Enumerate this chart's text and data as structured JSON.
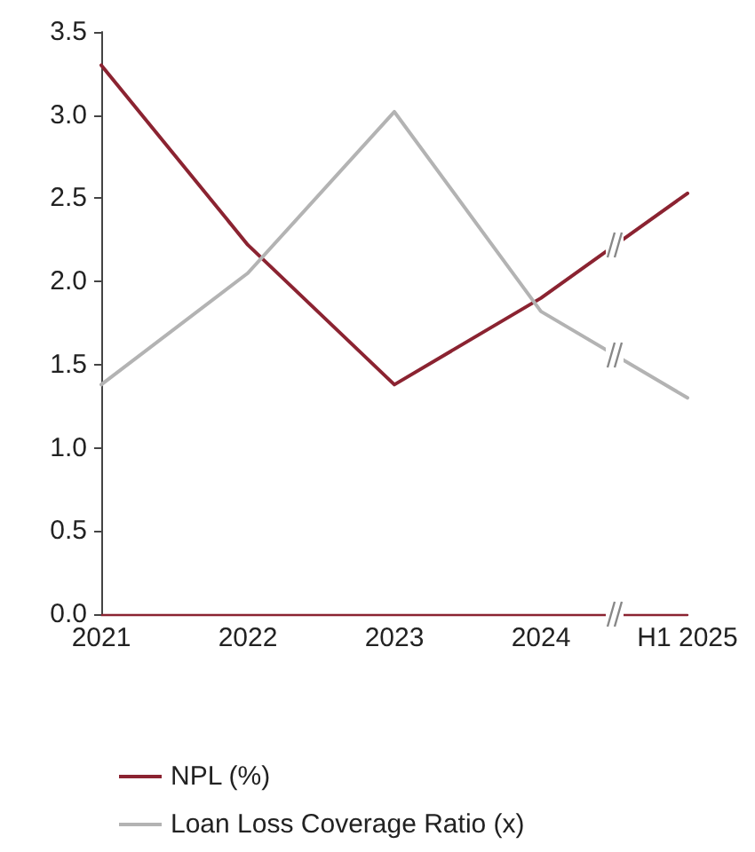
{
  "chart_data": {
    "type": "line",
    "categories": [
      "2021",
      "2022",
      "2023",
      "2024",
      "H1 2025"
    ],
    "series": [
      {
        "name": "NPL (%)",
        "color": "#8b2331",
        "values": [
          3.3,
          2.22,
          1.38,
          1.9,
          2.53
        ]
      },
      {
        "name": "Loan Loss Coverage Ratio (x)",
        "color": "#b3b3b3",
        "values": [
          1.38,
          2.05,
          3.02,
          1.82,
          1.3
        ]
      }
    ],
    "ylim": [
      0,
      3.5
    ],
    "yticks": [
      {
        "value": 0,
        "label": "0.0"
      },
      0.5,
      {
        "value": 1,
        "label": "1.0"
      },
      1.5,
      {
        "value": 2,
        "label": "2.0"
      },
      2.5,
      {
        "value": 3,
        "label": "3.0"
      },
      3.5
    ],
    "grid": false,
    "legend": "bottom left",
    "marker": "none",
    "line_style": "solid"
  }
}
